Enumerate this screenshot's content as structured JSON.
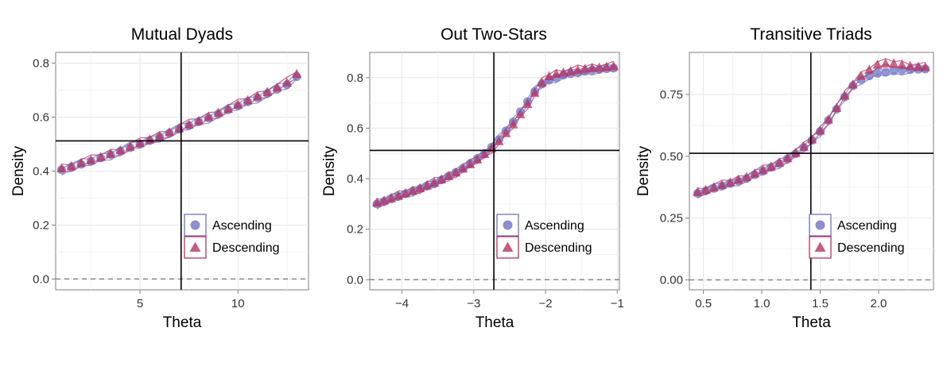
{
  "legend": {
    "ascending_label": "Ascending",
    "descending_label": "Descending",
    "ascending_color": "#6e73c4",
    "descending_color": "#b8325e"
  },
  "chart_data": [
    {
      "type": "scatter",
      "title": "Mutual Dyads",
      "xlabel": "Theta",
      "ylabel": "Density",
      "xlim": [
        0.7,
        13.6
      ],
      "ylim": [
        -0.04,
        0.84
      ],
      "xticks": [
        5,
        10
      ],
      "xtick_labels": [
        "5",
        "10"
      ],
      "yticks": [
        0.0,
        0.2,
        0.4,
        0.6,
        0.8
      ],
      "ytick_labels": [
        "0.0",
        "0.2",
        "0.4",
        "0.6",
        "0.8"
      ],
      "vline": 7.1,
      "hline": 0.512,
      "dashed_hline": 0.0,
      "series": [
        {
          "name": "Ascending",
          "x": [
            1.0,
            1.5,
            2.0,
            2.5,
            3.0,
            3.5,
            4.0,
            4.5,
            5.0,
            5.5,
            6.0,
            6.5,
            7.0,
            7.5,
            8.0,
            8.5,
            9.0,
            9.5,
            10.0,
            10.5,
            11.0,
            11.5,
            12.0,
            12.5,
            13.0
          ],
          "y": [
            0.405,
            0.415,
            0.425,
            0.437,
            0.449,
            0.461,
            0.474,
            0.487,
            0.5,
            0.513,
            0.527,
            0.541,
            0.555,
            0.569,
            0.583,
            0.597,
            0.612,
            0.627,
            0.642,
            0.657,
            0.672,
            0.688,
            0.703,
            0.72,
            0.75
          ]
        },
        {
          "name": "Descending",
          "x": [
            1.0,
            1.5,
            2.0,
            2.5,
            3.0,
            3.5,
            4.0,
            4.5,
            5.0,
            5.5,
            6.0,
            6.5,
            7.0,
            7.5,
            8.0,
            8.5,
            9.0,
            9.5,
            10.0,
            10.5,
            11.0,
            11.5,
            12.0,
            12.5,
            13.0
          ],
          "y": [
            0.41,
            0.418,
            0.43,
            0.44,
            0.452,
            0.464,
            0.477,
            0.49,
            0.503,
            0.517,
            0.53,
            0.544,
            0.558,
            0.572,
            0.586,
            0.601,
            0.616,
            0.631,
            0.646,
            0.662,
            0.677,
            0.693,
            0.71,
            0.728,
            0.76
          ]
        }
      ]
    },
    {
      "type": "scatter",
      "title": "Out Two-Stars",
      "xlabel": "Theta",
      "ylabel": "Density",
      "xlim": [
        -4.45,
        -0.97
      ],
      "ylim": [
        -0.04,
        0.9
      ],
      "xticks": [
        -4,
        -3,
        -2,
        -1
      ],
      "xtick_labels": [
        "−4",
        "−3",
        "−2",
        "−1"
      ],
      "yticks": [
        0.0,
        0.2,
        0.4,
        0.6,
        0.8
      ],
      "ytick_labels": [
        "0.0",
        "0.2",
        "0.4",
        "0.6",
        "0.8"
      ],
      "vline": -2.72,
      "hline": 0.512,
      "dashed_hline": 0.0,
      "series": [
        {
          "name": "Ascending",
          "x": [
            -4.35,
            -4.25,
            -4.15,
            -4.05,
            -3.95,
            -3.85,
            -3.75,
            -3.65,
            -3.55,
            -3.45,
            -3.35,
            -3.25,
            -3.15,
            -3.05,
            -2.95,
            -2.85,
            -2.75,
            -2.65,
            -2.55,
            -2.45,
            -2.35,
            -2.25,
            -2.15,
            -2.05,
            -1.95,
            -1.85,
            -1.75,
            -1.65,
            -1.55,
            -1.45,
            -1.35,
            -1.25,
            -1.15,
            -1.05
          ],
          "y": [
            0.3,
            0.31,
            0.32,
            0.33,
            0.34,
            0.35,
            0.36,
            0.37,
            0.38,
            0.395,
            0.41,
            0.425,
            0.44,
            0.46,
            0.48,
            0.5,
            0.525,
            0.555,
            0.59,
            0.625,
            0.665,
            0.705,
            0.745,
            0.775,
            0.79,
            0.8,
            0.81,
            0.815,
            0.82,
            0.825,
            0.83,
            0.832,
            0.835,
            0.838
          ]
        },
        {
          "name": "Descending",
          "x": [
            -4.35,
            -4.25,
            -4.15,
            -4.05,
            -3.95,
            -3.85,
            -3.75,
            -3.65,
            -3.55,
            -3.45,
            -3.35,
            -3.25,
            -3.15,
            -3.05,
            -2.95,
            -2.85,
            -2.75,
            -2.65,
            -2.55,
            -2.45,
            -2.35,
            -2.25,
            -2.15,
            -2.05,
            -1.95,
            -1.85,
            -1.75,
            -1.65,
            -1.55,
            -1.45,
            -1.35,
            -1.25,
            -1.15,
            -1.05
          ],
          "y": [
            0.305,
            0.313,
            0.322,
            0.332,
            0.342,
            0.352,
            0.362,
            0.373,
            0.384,
            0.397,
            0.41,
            0.424,
            0.44,
            0.457,
            0.476,
            0.497,
            0.52,
            0.548,
            0.58,
            0.615,
            0.655,
            0.695,
            0.74,
            0.78,
            0.805,
            0.815,
            0.82,
            0.825,
            0.83,
            0.835,
            0.838,
            0.84,
            0.842,
            0.845
          ]
        }
      ]
    },
    {
      "type": "scatter",
      "title": "Transitive Triads",
      "xlabel": "Theta",
      "ylabel": "Density",
      "xlim": [
        0.38,
        2.47
      ],
      "ylim": [
        -0.04,
        0.92
      ],
      "xticks": [
        0.5,
        1.0,
        1.5,
        2.0
      ],
      "xtick_labels": [
        "0.5",
        "1.0",
        "1.5",
        "2.0"
      ],
      "yticks": [
        0.0,
        0.25,
        0.5,
        0.75
      ],
      "ytick_labels": [
        "0.00",
        "0.25",
        "0.50",
        "0.75"
      ],
      "vline": 1.42,
      "hline": 0.512,
      "dashed_hline": 0.0,
      "series": [
        {
          "name": "Ascending",
          "x": [
            0.45,
            0.52,
            0.59,
            0.66,
            0.73,
            0.8,
            0.87,
            0.94,
            1.01,
            1.08,
            1.15,
            1.22,
            1.29,
            1.36,
            1.43,
            1.5,
            1.57,
            1.64,
            1.71,
            1.78,
            1.85,
            1.92,
            1.99,
            2.06,
            2.13,
            2.2,
            2.27,
            2.34,
            2.4
          ],
          "y": [
            0.35,
            0.36,
            0.37,
            0.38,
            0.39,
            0.4,
            0.41,
            0.425,
            0.44,
            0.455,
            0.47,
            0.49,
            0.51,
            0.535,
            0.565,
            0.6,
            0.645,
            0.69,
            0.74,
            0.785,
            0.81,
            0.825,
            0.835,
            0.84,
            0.845,
            0.848,
            0.85,
            0.852,
            0.853
          ]
        },
        {
          "name": "Descending",
          "x": [
            0.45,
            0.52,
            0.59,
            0.66,
            0.73,
            0.8,
            0.87,
            0.94,
            1.01,
            1.08,
            1.15,
            1.22,
            1.29,
            1.36,
            1.43,
            1.5,
            1.57,
            1.64,
            1.71,
            1.78,
            1.85,
            1.92,
            1.99,
            2.06,
            2.13,
            2.2,
            2.27,
            2.34,
            2.4
          ],
          "y": [
            0.355,
            0.364,
            0.374,
            0.384,
            0.394,
            0.405,
            0.416,
            0.43,
            0.444,
            0.458,
            0.474,
            0.492,
            0.513,
            0.538,
            0.568,
            0.604,
            0.648,
            0.695,
            0.745,
            0.79,
            0.825,
            0.85,
            0.87,
            0.875,
            0.875,
            0.87,
            0.865,
            0.862,
            0.86
          ]
        }
      ]
    }
  ]
}
